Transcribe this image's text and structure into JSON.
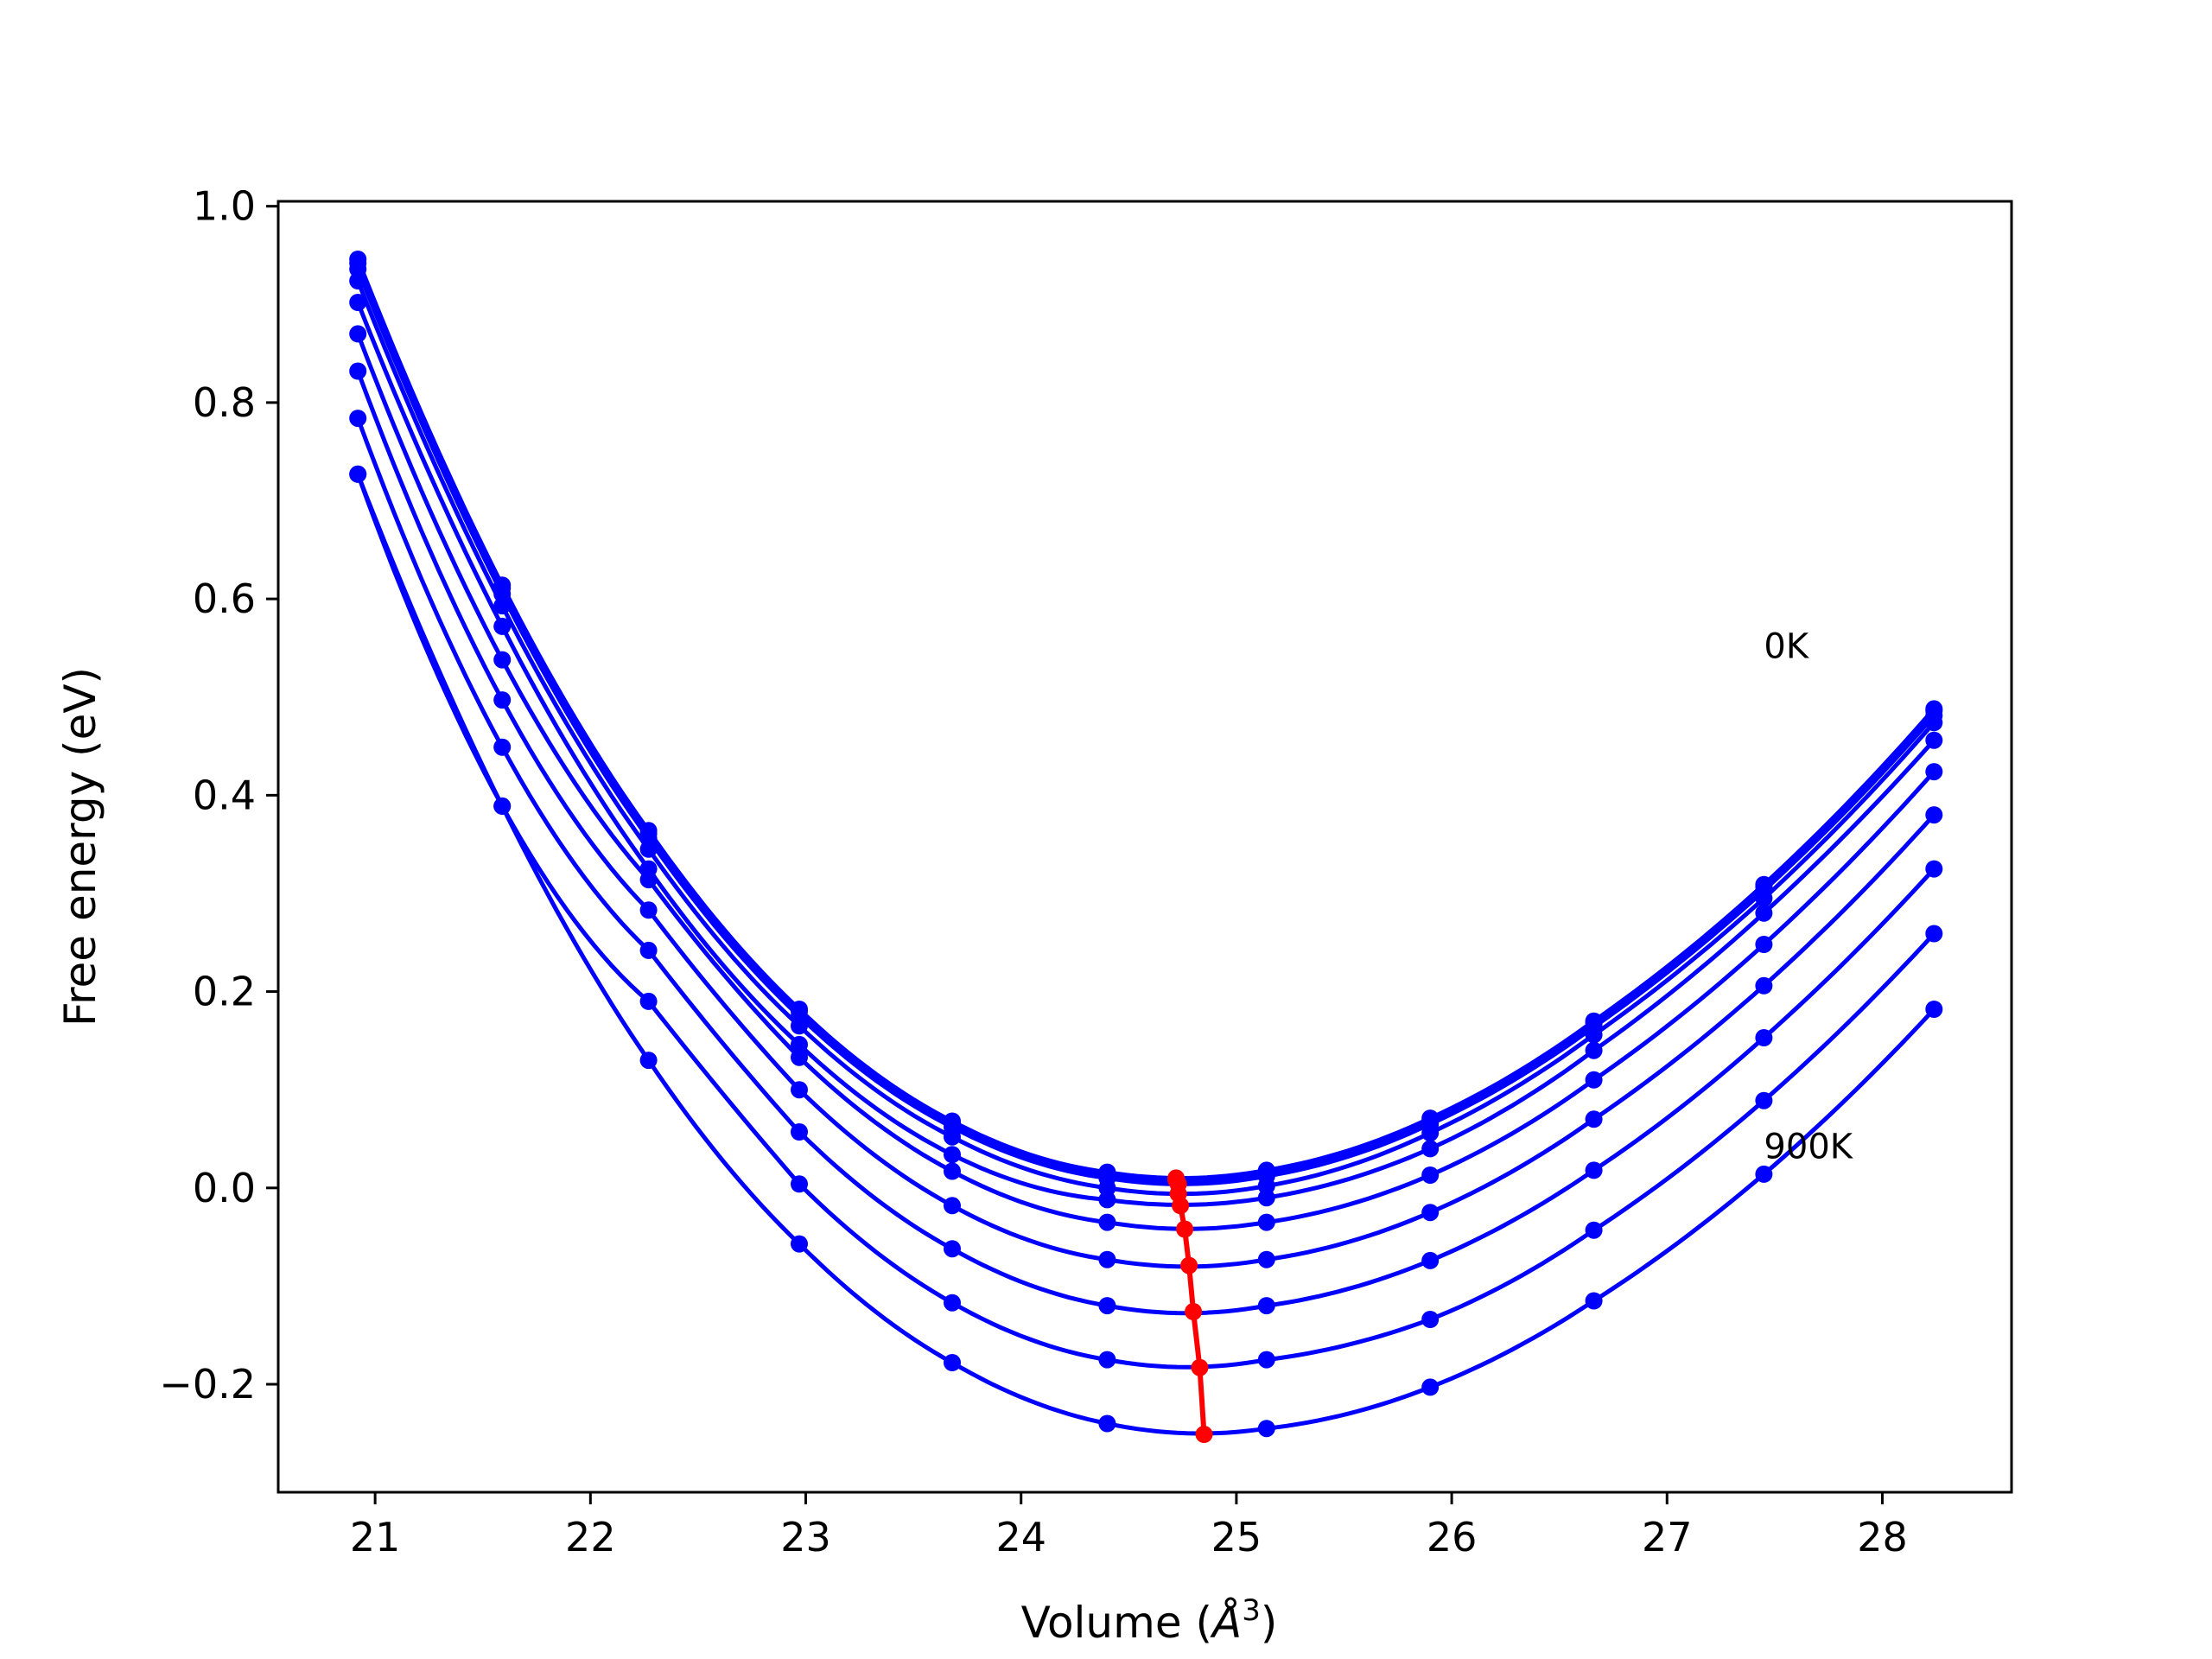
{
  "chart_data": {
    "type": "line",
    "xlabel": "Volume (",
    "xlabel_unit": "Å",
    "xlabel_exp": "3",
    "xlabel_close": ")",
    "ylabel": "Free energy (eV)",
    "xlim": [
      20.55,
      28.6
    ],
    "ylim": [
      -0.31,
      1.005
    ],
    "xticks": [
      21,
      22,
      23,
      24,
      25,
      26,
      27,
      28
    ],
    "xtick_labels": [
      "21",
      "22",
      "23",
      "24",
      "25",
      "26",
      "27",
      "28"
    ],
    "yticks": [
      -0.2,
      0.0,
      0.2,
      0.4,
      0.6,
      0.8,
      1.0
    ],
    "ytick_labels": [
      "−0.2",
      "0.0",
      "0.2",
      "0.4",
      "0.6",
      "0.8",
      "1.0"
    ],
    "grid": false,
    "curve_color": "#0000ff",
    "min_color": "#ff0000",
    "annotations": [
      {
        "text": "0K",
        "x": 27.45,
        "y": 0.54
      },
      {
        "text": "900K",
        "x": 27.45,
        "y": 0.03
      }
    ],
    "volumes": [
      20.92,
      21.59,
      22.27,
      22.97,
      23.68,
      24.4,
      25.14,
      25.9,
      26.66,
      27.45,
      28.24
    ],
    "series": [
      {
        "values": [
          0.946,
          0.614,
          0.364,
          0.182,
          0.068,
          0.016,
          0.018,
          0.071,
          0.17,
          0.309,
          0.488
        ],
        "min_v": 24.72,
        "min_f": 0.01
      },
      {
        "values": [
          0.942,
          0.611,
          0.361,
          0.18,
          0.066,
          0.014,
          0.016,
          0.069,
          0.168,
          0.307,
          0.486
        ],
        "min_v": 24.72,
        "min_f": 0.008
      },
      {
        "values": [
          0.936,
          0.605,
          0.356,
          0.175,
          0.062,
          0.01,
          0.012,
          0.065,
          0.164,
          0.303,
          0.481
        ],
        "min_v": 24.73,
        "min_f": 0.004
      },
      {
        "values": [
          0.924,
          0.593,
          0.345,
          0.165,
          0.052,
          0.0,
          0.002,
          0.056,
          0.156,
          0.295,
          0.474
        ],
        "min_v": 24.73,
        "min_f": -0.006
      },
      {
        "values": [
          0.902,
          0.572,
          0.325,
          0.146,
          0.034,
          -0.012,
          -0.01,
          0.04,
          0.14,
          0.28,
          0.456
        ],
        "min_v": 24.74,
        "min_f": -0.018
      },
      {
        "values": [
          0.87,
          0.538,
          0.314,
          0.133,
          0.017,
          -0.035,
          -0.035,
          0.013,
          0.11,
          0.248,
          0.424
        ],
        "min_v": 24.76,
        "min_f": -0.042
      },
      {
        "values": [
          0.832,
          0.497,
          0.283,
          0.1,
          -0.018,
          -0.073,
          -0.073,
          -0.025,
          0.07,
          0.206,
          0.38
        ],
        "min_v": 24.78,
        "min_f": -0.079
      },
      {
        "values": [
          0.784,
          0.449,
          0.242,
          0.057,
          -0.062,
          -0.12,
          -0.12,
          -0.074,
          0.018,
          0.153,
          0.325
        ],
        "min_v": 24.8,
        "min_f": -0.126
      },
      {
        "values": [
          0.727,
          0.389,
          0.19,
          0.004,
          -0.117,
          -0.175,
          -0.175,
          -0.134,
          -0.043,
          0.089,
          0.259
        ],
        "min_v": 24.83,
        "min_f": -0.183
      },
      {
        "values": [
          0.727,
          0.389,
          0.13,
          -0.057,
          -0.178,
          -0.24,
          -0.245,
          -0.203,
          -0.115,
          0.014,
          0.182
        ],
        "min_v": 24.85,
        "min_f": -0.251
      }
    ],
    "minima_line": {
      "v": [
        24.72,
        24.72,
        24.73,
        24.73,
        24.74,
        24.76,
        24.78,
        24.8,
        24.83,
        24.85
      ],
      "f": [
        0.01,
        0.008,
        0.004,
        -0.006,
        -0.018,
        -0.042,
        -0.079,
        -0.126,
        -0.183,
        -0.251
      ]
    }
  }
}
